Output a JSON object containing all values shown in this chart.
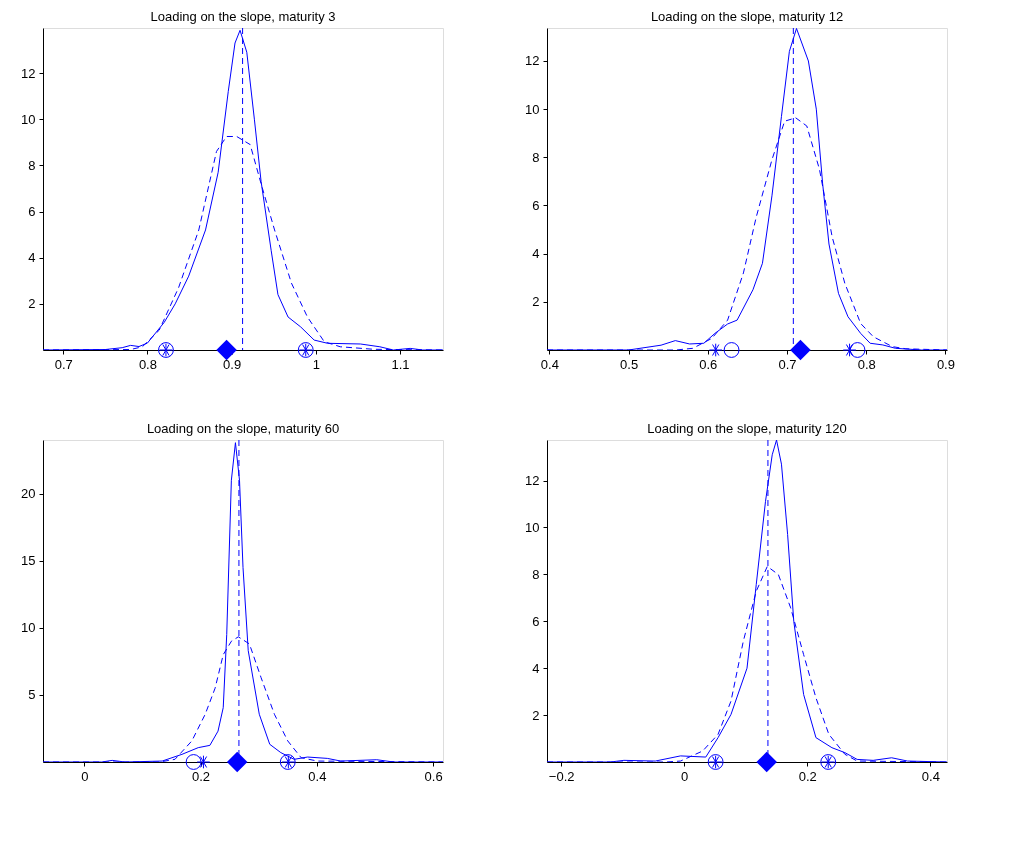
{
  "chart_data": [
    {
      "type": "line",
      "title": "Loading on the slope, maturity 3",
      "xlim": [
        0.676,
        1.151
      ],
      "ylim": [
        0,
        13.95
      ],
      "xticks": [
        0.7,
        0.8,
        0.9,
        1,
        1.1
      ],
      "yticks": [
        2,
        4,
        6,
        8,
        10,
        12
      ],
      "grid": false,
      "series": [
        {
          "line_style": "solid",
          "color": "#0000ff",
          "x": [
            0.676,
            0.75,
            0.77,
            0.78,
            0.79,
            0.8,
            0.82,
            0.833,
            0.849,
            0.869,
            0.884,
            0.896,
            0.904,
            0.91,
            0.918,
            0.927,
            0.935,
            0.947,
            0.955,
            0.967,
            0.982,
            0.998,
            1.014,
            1.053,
            1.076,
            1.092,
            1.112,
            1.127,
            1.151
          ],
          "values": [
            0,
            0.02,
            0.1,
            0.2,
            0.15,
            0.3,
            1.2,
            2.0,
            3.2,
            5.2,
            7.7,
            11.2,
            13.3,
            13.85,
            12.9,
            10.0,
            7.3,
            4.3,
            2.4,
            1.43,
            1.0,
            0.43,
            0.29,
            0.26,
            0.14,
            0,
            0.07,
            0,
            0
          ]
        },
        {
          "line_style": "dashed",
          "color": "#0000ff",
          "x": [
            0.676,
            0.78,
            0.794,
            0.814,
            0.837,
            0.861,
            0.882,
            0.894,
            0.906,
            0.922,
            0.935,
            0.951,
            0.971,
            0.99,
            1.01,
            1.029,
            1.069,
            1.151
          ],
          "values": [
            0,
            0.02,
            0.14,
            0.86,
            2.7,
            5.2,
            8.6,
            9.25,
            9.25,
            8.9,
            7.2,
            5.2,
            2.9,
            1.43,
            0.36,
            0.14,
            0.03,
            0
          ]
        },
        {
          "type": "scatter",
          "marker": "cross",
          "color": "#0000ff",
          "x": [
            0.822,
            0.988
          ],
          "values": [
            0,
            0
          ]
        },
        {
          "type": "scatter",
          "marker": "circle",
          "color": "#0000ff",
          "x": [
            0.822,
            0.988
          ],
          "values": [
            0,
            0
          ]
        },
        {
          "type": "scatter",
          "marker": "diamond",
          "color": "#0000ff",
          "x": [
            0.894
          ],
          "values": [
            0
          ]
        }
      ],
      "ref_lines": [
        {
          "axis": "x",
          "value": 0.913,
          "color": "#0000ff",
          "line_style": "dashed"
        }
      ]
    },
    {
      "type": "line",
      "title": "Loading on the slope, maturity 12",
      "xlim": [
        0.397,
        0.902
      ],
      "ylim": [
        0,
        13.37
      ],
      "xticks": [
        0.4,
        0.5,
        0.6,
        0.7,
        0.8,
        0.9
      ],
      "yticks": [
        2,
        4,
        6,
        8,
        10,
        12
      ],
      "grid": false,
      "series": [
        {
          "line_style": "solid",
          "color": "#0000ff",
          "x": [
            0.397,
            0.5,
            0.541,
            0.559,
            0.577,
            0.595,
            0.609,
            0.625,
            0.637,
            0.657,
            0.669,
            0.681,
            0.693,
            0.703,
            0.712,
            0.727,
            0.737,
            0.745,
            0.753,
            0.765,
            0.777,
            0.793,
            0.805,
            0.821,
            0.837,
            0.87,
            0.902
          ],
          "values": [
            0,
            0,
            0.2,
            0.39,
            0.25,
            0.28,
            0.69,
            1.08,
            1.24,
            2.5,
            3.6,
            6.4,
            9.7,
            12.4,
            13.35,
            12.0,
            10.0,
            6.9,
            4.4,
            2.35,
            1.38,
            0.69,
            0.28,
            0.21,
            0.07,
            0,
            0
          ]
        },
        {
          "line_style": "dashed",
          "color": "#0000ff",
          "x": [
            0.397,
            0.56,
            0.581,
            0.605,
            0.625,
            0.645,
            0.661,
            0.681,
            0.697,
            0.711,
            0.725,
            0.741,
            0.757,
            0.773,
            0.793,
            0.809,
            0.833,
            0.85,
            0.902
          ],
          "values": [
            0,
            0,
            0.07,
            0.48,
            1.24,
            3.2,
            5.5,
            7.9,
            9.5,
            9.64,
            9.3,
            7.5,
            4.7,
            2.77,
            1.1,
            0.55,
            0.14,
            0.05,
            0
          ]
        },
        {
          "type": "scatter",
          "marker": "circle",
          "color": "#0000ff",
          "x": [
            0.63,
            0.789
          ],
          "values": [
            0,
            0
          ]
        },
        {
          "type": "scatter",
          "marker": "cross",
          "color": "#0000ff",
          "x": [
            0.61,
            0.779
          ],
          "values": [
            0,
            0
          ]
        },
        {
          "type": "scatter",
          "marker": "diamond",
          "color": "#0000ff",
          "x": [
            0.717
          ],
          "values": [
            0
          ]
        }
      ],
      "ref_lines": [
        {
          "axis": "x",
          "value": 0.708,
          "color": "#0000ff",
          "line_style": "dashed"
        }
      ]
    },
    {
      "type": "line",
      "title": "Loading on the slope, maturity 60",
      "xlim": [
        -0.071,
        0.617
      ],
      "ylim": [
        0,
        24.0
      ],
      "xticks": [
        0,
        0.2,
        0.4,
        0.6
      ],
      "yticks": [
        5,
        10,
        15,
        20
      ],
      "grid": false,
      "series": [
        {
          "line_style": "solid",
          "color": "#0000ff",
          "x": [
            -0.071,
            0.03,
            0.048,
            0.07,
            0.134,
            0.168,
            0.196,
            0.216,
            0.23,
            0.239,
            0.245,
            0.253,
            0.26,
            0.267,
            0.273,
            0.282,
            0.301,
            0.319,
            0.338,
            0.361,
            0.384,
            0.418,
            0.441,
            0.503,
            0.532,
            0.617
          ],
          "values": [
            0,
            0,
            0.12,
            0,
            0.07,
            0.57,
            1.07,
            1.24,
            2.3,
            4.05,
            9.5,
            21.0,
            23.8,
            21.0,
            14.5,
            8.3,
            3.56,
            1.32,
            0.7,
            0.2,
            0.37,
            0.27,
            0.07,
            0.17,
            0,
            0
          ]
        },
        {
          "line_style": "dashed",
          "color": "#0000ff",
          "x": [
            -0.071,
            0.13,
            0.156,
            0.185,
            0.208,
            0.225,
            0.239,
            0.253,
            0.265,
            0.284,
            0.304,
            0.327,
            0.35,
            0.373,
            0.401,
            0.617
          ],
          "values": [
            0,
            0,
            0.2,
            1.57,
            3.56,
            5.5,
            8.0,
            9.0,
            9.33,
            8.8,
            6.3,
            3.56,
            1.57,
            0.32,
            0.07,
            0
          ]
        },
        {
          "type": "scatter",
          "marker": "circle",
          "color": "#0000ff",
          "x": [
            0.188,
            0.35
          ],
          "values": [
            0,
            0
          ]
        },
        {
          "type": "scatter",
          "marker": "cross",
          "color": "#0000ff",
          "x": [
            0.205,
            0.351
          ],
          "values": [
            0,
            0
          ]
        },
        {
          "type": "scatter",
          "marker": "diamond",
          "color": "#0000ff",
          "x": [
            0.263
          ],
          "values": [
            0
          ]
        }
      ],
      "ref_lines": [
        {
          "axis": "x",
          "value": 0.266,
          "color": "#0000ff",
          "line_style": "dashed"
        }
      ]
    },
    {
      "type": "line",
      "title": "Loading on the slope, maturity 120",
      "xlim": [
        -0.223,
        0.427
      ],
      "ylim": [
        0,
        13.73
      ],
      "xticks": [
        -0.2,
        0,
        0.2,
        0.4
      ],
      "yticks": [
        2,
        4,
        6,
        8,
        10,
        12
      ],
      "grid": false,
      "series": [
        {
          "line_style": "solid",
          "color": "#0000ff",
          "x": [
            -0.223,
            -0.12,
            -0.098,
            -0.047,
            -0.006,
            0.035,
            0.055,
            0.076,
            0.102,
            0.117,
            0.132,
            0.143,
            0.15,
            0.158,
            0.168,
            0.178,
            0.194,
            0.214,
            0.24,
            0.261,
            0.281,
            0.307,
            0.337,
            0.363,
            0.427
          ],
          "values": [
            0,
            0,
            0.07,
            0.04,
            0.26,
            0.21,
            1.04,
            2.03,
            4.0,
            7.56,
            11.1,
            13.1,
            13.73,
            12.7,
            9.7,
            6.0,
            2.88,
            1.04,
            0.61,
            0.4,
            0.11,
            0.07,
            0.18,
            0.04,
            0
          ]
        },
        {
          "line_style": "dashed",
          "color": "#0000ff",
          "x": [
            -0.223,
            -0.03,
            -0.006,
            0.03,
            0.055,
            0.076,
            0.096,
            0.117,
            0.135,
            0.153,
            0.173,
            0.194,
            0.214,
            0.235,
            0.261,
            0.281,
            0.427
          ],
          "values": [
            0,
            0,
            0.04,
            0.47,
            1.18,
            2.6,
            5.15,
            7.28,
            8.34,
            7.99,
            6.57,
            4.58,
            2.74,
            1.18,
            0.33,
            0.04,
            0
          ]
        },
        {
          "type": "scatter",
          "marker": "cross",
          "color": "#0000ff",
          "x": [
            0.051,
            0.234
          ],
          "values": [
            0,
            0
          ]
        },
        {
          "type": "scatter",
          "marker": "circle",
          "color": "#0000ff",
          "x": [
            0.051,
            0.234
          ],
          "values": [
            0,
            0
          ]
        },
        {
          "type": "scatter",
          "marker": "diamond",
          "color": "#0000ff",
          "x": [
            0.134
          ],
          "values": [
            0
          ]
        }
      ],
      "ref_lines": [
        {
          "axis": "x",
          "value": 0.136,
          "color": "#0000ff",
          "line_style": "dashed"
        }
      ]
    }
  ]
}
